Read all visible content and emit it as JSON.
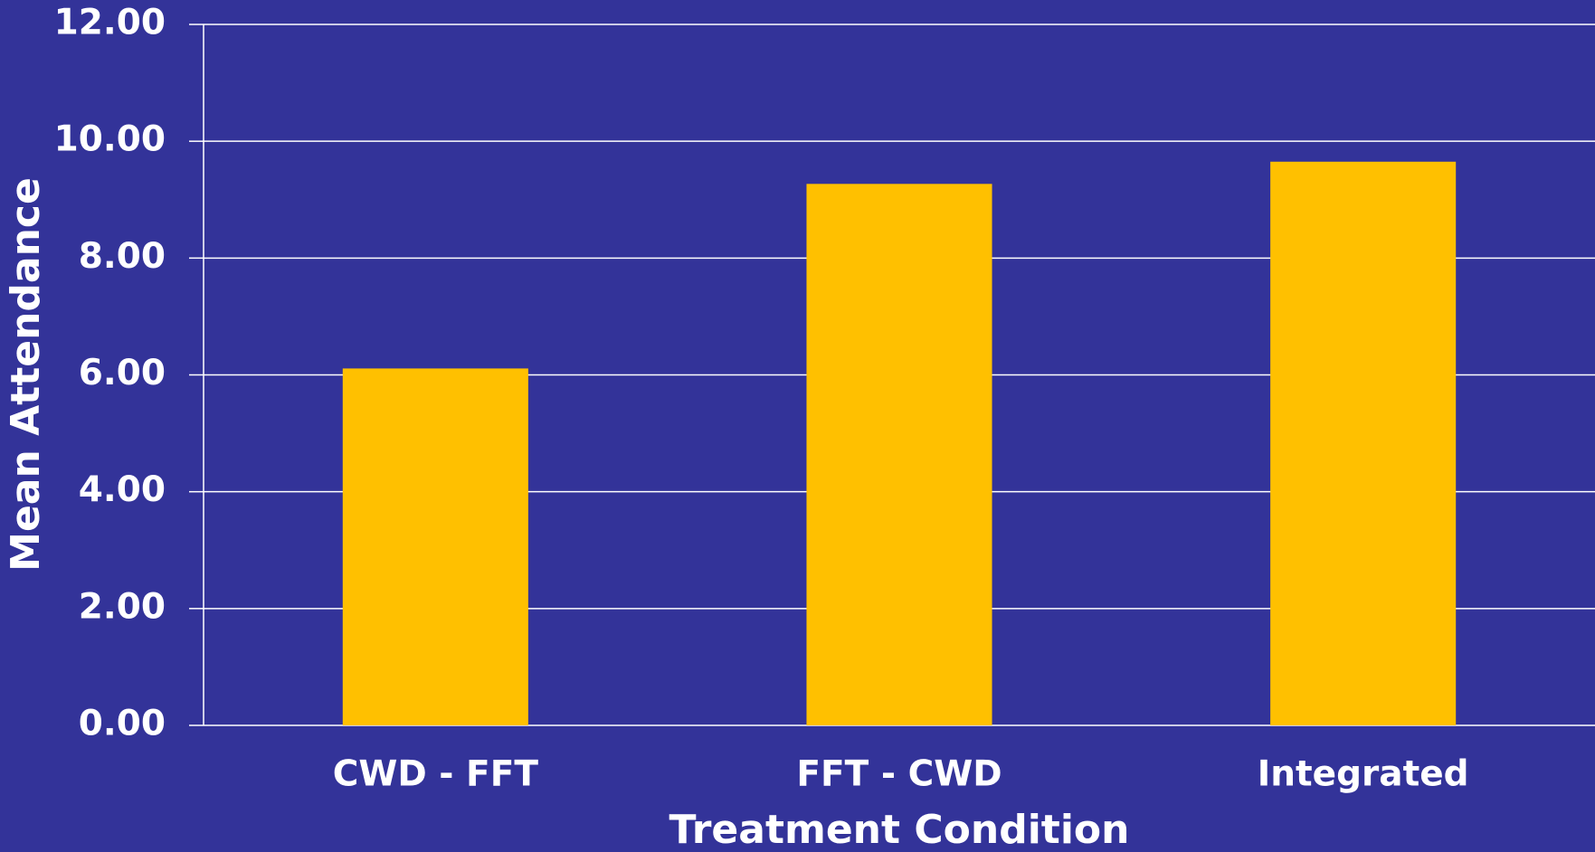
{
  "chart_data": {
    "type": "bar",
    "categories": [
      "CWD - FFT",
      "FFT - CWD",
      "Integrated"
    ],
    "values": [
      6.11,
      9.27,
      9.65
    ],
    "color": "#ffc000",
    "x_label": "Treatment Condition",
    "y_label": "Mean Attendance",
    "ylim": [
      0,
      12
    ],
    "yticks": [
      {
        "value": 0,
        "label": "0.00"
      },
      {
        "value": 2,
        "label": "2.00"
      },
      {
        "value": 4,
        "label": "4.00"
      },
      {
        "value": 6,
        "label": "6.00"
      },
      {
        "value": 8,
        "label": "8.00"
      },
      {
        "value": 10,
        "label": "10.00"
      },
      {
        "value": 12,
        "label": "12.00"
      }
    ],
    "grid": true
  }
}
